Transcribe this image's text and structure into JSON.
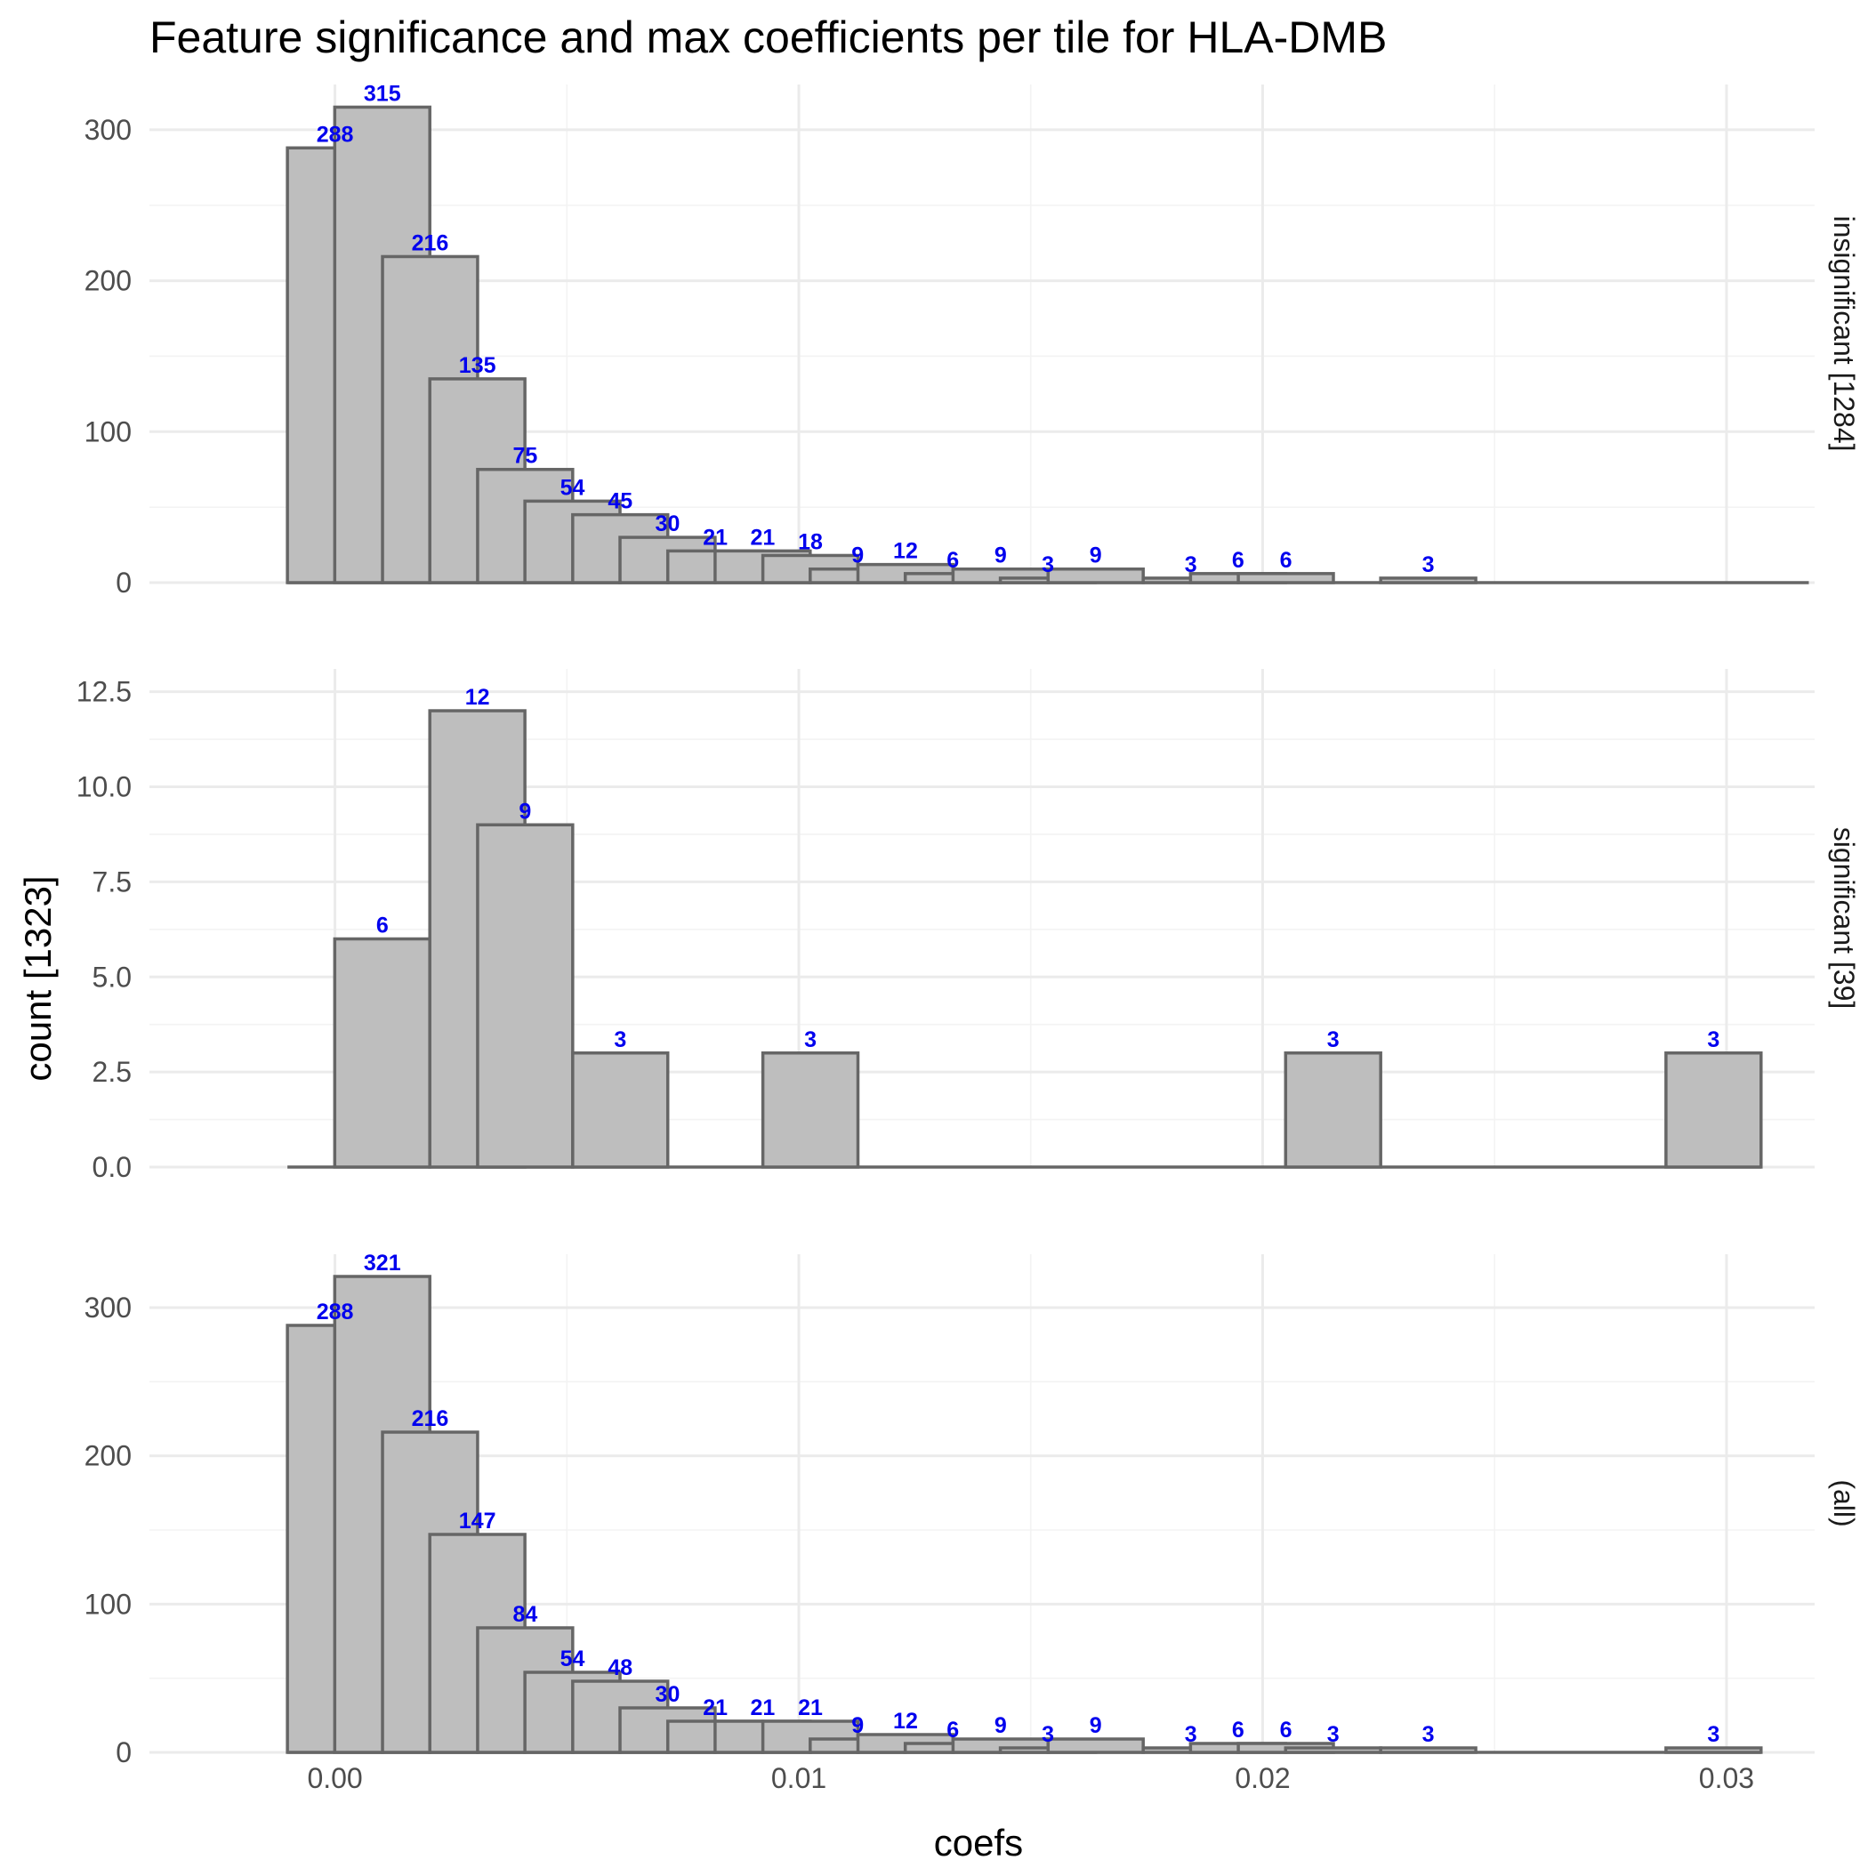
{
  "chart_data": {
    "type": "bar",
    "title": "Feature significance and max coefficients per tile for HLA-DMB",
    "xlabel": "coefs",
    "ylabel": "count [1323]",
    "xlim": [
      -0.004,
      0.0319
    ],
    "x_ticks": [
      "0.00",
      "0.01",
      "0.02",
      "0.03"
    ],
    "x_tick_values": [
      0,
      0.01,
      0.02,
      0.03
    ],
    "bin_width": 0.00205,
    "bin_centers": [
      0.0,
      0.00205,
      0.0041,
      0.00615,
      0.0082,
      0.01025,
      0.0123,
      0.01435,
      0.0164,
      0.01845,
      0.0205,
      0.02255,
      0.0246,
      0.02665,
      0.0287,
      0.03075
    ],
    "grid": true,
    "label_color": "#0000ee",
    "bar_fill": "#bebebe",
    "bar_stroke": "#666666",
    "panels": [
      {
        "strip": "insignificant [1284]",
        "ylim": [
          0,
          330
        ],
        "y_ticks": [
          "0",
          "100",
          "200",
          "300"
        ],
        "y_tick_values": [
          0,
          100,
          200,
          300
        ],
        "bins": [
          {
            "x": 0.0,
            "count": 288,
            "label": "288"
          },
          {
            "x": 0.00102,
            "count": 315,
            "label": "315"
          },
          {
            "x": 0.00205,
            "count": 216,
            "label": "216"
          },
          {
            "x": 0.00307,
            "count": 135,
            "label": "135"
          },
          {
            "x": 0.0041,
            "count": 75,
            "label": "75"
          },
          {
            "x": 0.00512,
            "count": 54,
            "label": "54"
          },
          {
            "x": 0.00615,
            "count": 45,
            "label": "45"
          },
          {
            "x": 0.00717,
            "count": 30,
            "label": "30"
          },
          {
            "x": 0.0082,
            "count": 21,
            "label": "21"
          },
          {
            "x": 0.00922,
            "count": 21,
            "label": "21"
          },
          {
            "x": 0.01025,
            "count": 18,
            "label": "18"
          },
          {
            "x": 0.01127,
            "count": 9,
            "label": "9"
          },
          {
            "x": 0.0123,
            "count": 12,
            "label": "12"
          },
          {
            "x": 0.01332,
            "count": 6,
            "label": "6"
          },
          {
            "x": 0.01435,
            "count": 9,
            "label": "9"
          },
          {
            "x": 0.01537,
            "count": 3,
            "label": "3"
          },
          {
            "x": 0.0164,
            "count": 9,
            "label": "9"
          },
          {
            "x": 0.01742,
            "count": 0,
            "label": ""
          },
          {
            "x": 0.01845,
            "count": 3,
            "label": "3"
          },
          {
            "x": 0.01947,
            "count": 6,
            "label": "6"
          },
          {
            "x": 0.0205,
            "count": 6,
            "label": "6"
          },
          {
            "x": 0.02152,
            "count": 0,
            "label": ""
          },
          {
            "x": 0.02255,
            "count": 0,
            "label": ""
          },
          {
            "x": 0.02357,
            "count": 3,
            "label": "3"
          },
          {
            "x": 0.0246,
            "count": 0,
            "label": ""
          },
          {
            "x": 0.02562,
            "count": 0,
            "label": ""
          },
          {
            "x": 0.02665,
            "count": 0,
            "label": ""
          },
          {
            "x": 0.02767,
            "count": 0,
            "label": ""
          },
          {
            "x": 0.0287,
            "count": 0,
            "label": ""
          },
          {
            "x": 0.02972,
            "count": 0,
            "label": ""
          },
          {
            "x": 0.03075,
            "count": 0,
            "label": ""
          }
        ]
      },
      {
        "strip": "significant [39]",
        "ylim": [
          0,
          13.1
        ],
        "y_ticks": [
          "0.0",
          "2.5",
          "5.0",
          "7.5",
          "10.0",
          "12.5"
        ],
        "y_tick_values": [
          0,
          2.5,
          5,
          7.5,
          10,
          12.5
        ],
        "bins": [
          {
            "x": 0.0,
            "count": 0,
            "label": ""
          },
          {
            "x": 0.00102,
            "count": 6,
            "label": "6"
          },
          {
            "x": 0.00205,
            "count": 0,
            "label": ""
          },
          {
            "x": 0.00307,
            "count": 12,
            "label": "12"
          },
          {
            "x": 0.0041,
            "count": 9,
            "label": "9"
          },
          {
            "x": 0.00512,
            "count": 0,
            "label": ""
          },
          {
            "x": 0.00615,
            "count": 3,
            "label": "3"
          },
          {
            "x": 0.00717,
            "count": 0,
            "label": ""
          },
          {
            "x": 0.0082,
            "count": 0,
            "label": ""
          },
          {
            "x": 0.00922,
            "count": 0,
            "label": ""
          },
          {
            "x": 0.01025,
            "count": 3,
            "label": "3"
          },
          {
            "x": 0.01127,
            "count": 0,
            "label": ""
          },
          {
            "x": 0.0123,
            "count": 0,
            "label": ""
          },
          {
            "x": 0.01332,
            "count": 0,
            "label": ""
          },
          {
            "x": 0.01435,
            "count": 0,
            "label": ""
          },
          {
            "x": 0.01537,
            "count": 0,
            "label": ""
          },
          {
            "x": 0.0164,
            "count": 0,
            "label": ""
          },
          {
            "x": 0.01742,
            "count": 0,
            "label": ""
          },
          {
            "x": 0.01845,
            "count": 0,
            "label": ""
          },
          {
            "x": 0.01947,
            "count": 0,
            "label": ""
          },
          {
            "x": 0.0205,
            "count": 0,
            "label": ""
          },
          {
            "x": 0.02152,
            "count": 3,
            "label": "3"
          },
          {
            "x": 0.02255,
            "count": 0,
            "label": ""
          },
          {
            "x": 0.02357,
            "count": 0,
            "label": ""
          },
          {
            "x": 0.0246,
            "count": 0,
            "label": ""
          },
          {
            "x": 0.02562,
            "count": 0,
            "label": ""
          },
          {
            "x": 0.02665,
            "count": 0,
            "label": ""
          },
          {
            "x": 0.02767,
            "count": 0,
            "label": ""
          },
          {
            "x": 0.0287,
            "count": 0,
            "label": ""
          },
          {
            "x": 0.02972,
            "count": 3,
            "label": "3"
          }
        ]
      },
      {
        "strip": "(all)",
        "ylim": [
          0,
          336
        ],
        "y_ticks": [
          "0",
          "100",
          "200",
          "300"
        ],
        "y_tick_values": [
          0,
          100,
          200,
          300
        ],
        "bins": [
          {
            "x": 0.0,
            "count": 288,
            "label": "288"
          },
          {
            "x": 0.00102,
            "count": 321,
            "label": "321"
          },
          {
            "x": 0.00205,
            "count": 216,
            "label": "216"
          },
          {
            "x": 0.00307,
            "count": 147,
            "label": "147"
          },
          {
            "x": 0.0041,
            "count": 84,
            "label": "84"
          },
          {
            "x": 0.00512,
            "count": 54,
            "label": "54"
          },
          {
            "x": 0.00615,
            "count": 48,
            "label": "48"
          },
          {
            "x": 0.00717,
            "count": 30,
            "label": "30"
          },
          {
            "x": 0.0082,
            "count": 21,
            "label": "21"
          },
          {
            "x": 0.00922,
            "count": 21,
            "label": "21"
          },
          {
            "x": 0.01025,
            "count": 21,
            "label": "21"
          },
          {
            "x": 0.01127,
            "count": 9,
            "label": "9"
          },
          {
            "x": 0.0123,
            "count": 12,
            "label": "12"
          },
          {
            "x": 0.01332,
            "count": 6,
            "label": "6"
          },
          {
            "x": 0.01435,
            "count": 9,
            "label": "9"
          },
          {
            "x": 0.01537,
            "count": 3,
            "label": "3"
          },
          {
            "x": 0.0164,
            "count": 9,
            "label": "9"
          },
          {
            "x": 0.01742,
            "count": 0,
            "label": ""
          },
          {
            "x": 0.01845,
            "count": 3,
            "label": "3"
          },
          {
            "x": 0.01947,
            "count": 6,
            "label": "6"
          },
          {
            "x": 0.0205,
            "count": 6,
            "label": "6"
          },
          {
            "x": 0.02152,
            "count": 3,
            "label": "3"
          },
          {
            "x": 0.02255,
            "count": 0,
            "label": ""
          },
          {
            "x": 0.02357,
            "count": 3,
            "label": "3"
          },
          {
            "x": 0.0246,
            "count": 0,
            "label": ""
          },
          {
            "x": 0.02562,
            "count": 0,
            "label": ""
          },
          {
            "x": 0.02665,
            "count": 0,
            "label": ""
          },
          {
            "x": 0.02767,
            "count": 0,
            "label": ""
          },
          {
            "x": 0.0287,
            "count": 0,
            "label": ""
          },
          {
            "x": 0.02972,
            "count": 3,
            "label": "3"
          }
        ]
      }
    ]
  }
}
